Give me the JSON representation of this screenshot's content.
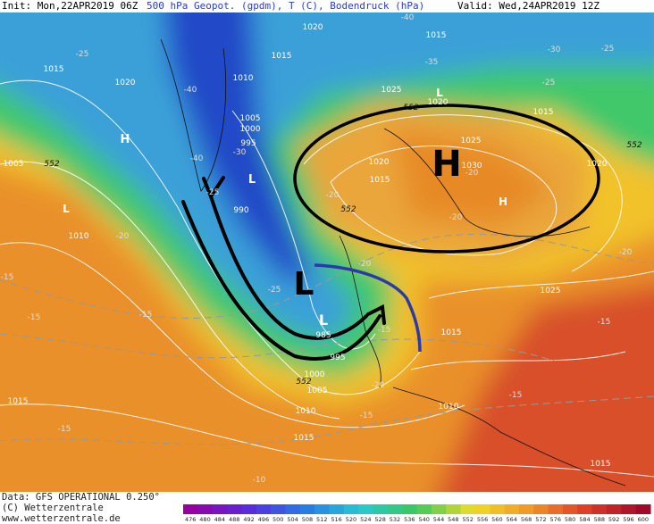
{
  "header": {
    "init": "Init: Mon,22APR2019 06Z",
    "field": "500 hPa Geopot. (gpdm), T (C), Bodendruck (hPa)",
    "valid": "Valid: Wed,24APR2019 12Z"
  },
  "footer": {
    "data": "Data: GFS OPERATIONAL 0.250°",
    "copyright": "(C) Wetterzentrale",
    "url": "www.wetterzentrale.de"
  },
  "colorbar": [
    476,
    480,
    484,
    488,
    492,
    496,
    500,
    504,
    508,
    512,
    516,
    520,
    524,
    528,
    532,
    536,
    540,
    544,
    548,
    552,
    556,
    560,
    564,
    568,
    572,
    576,
    580,
    584,
    588,
    592,
    596,
    600
  ],
  "isobar_labels": [
    1020,
    1015,
    1015,
    1020,
    1015,
    1010,
    1005,
    1000,
    995,
    990,
    1025,
    1020,
    1015,
    1025,
    1020,
    1015,
    1030,
    1020,
    1005,
    1010,
    1025,
    985,
    995,
    1000,
    1005,
    1010,
    1015,
    1010,
    1015,
    1015,
    1015
  ],
  "temperature_labels": [
    -40,
    -35,
    -30,
    -25,
    -25,
    -25,
    -40,
    -40,
    -30,
    -25,
    -20,
    -20,
    -20,
    -20,
    -15,
    -15,
    -15,
    -15,
    -15,
    -15,
    -15,
    -10,
    -25,
    -20,
    -15,
    -20,
    -20
  ],
  "height_labels": [
    552,
    552,
    552,
    552,
    552
  ],
  "pressure_centers": [
    "H",
    "L",
    "L",
    "L",
    "H",
    "H",
    "L",
    "L"
  ]
}
